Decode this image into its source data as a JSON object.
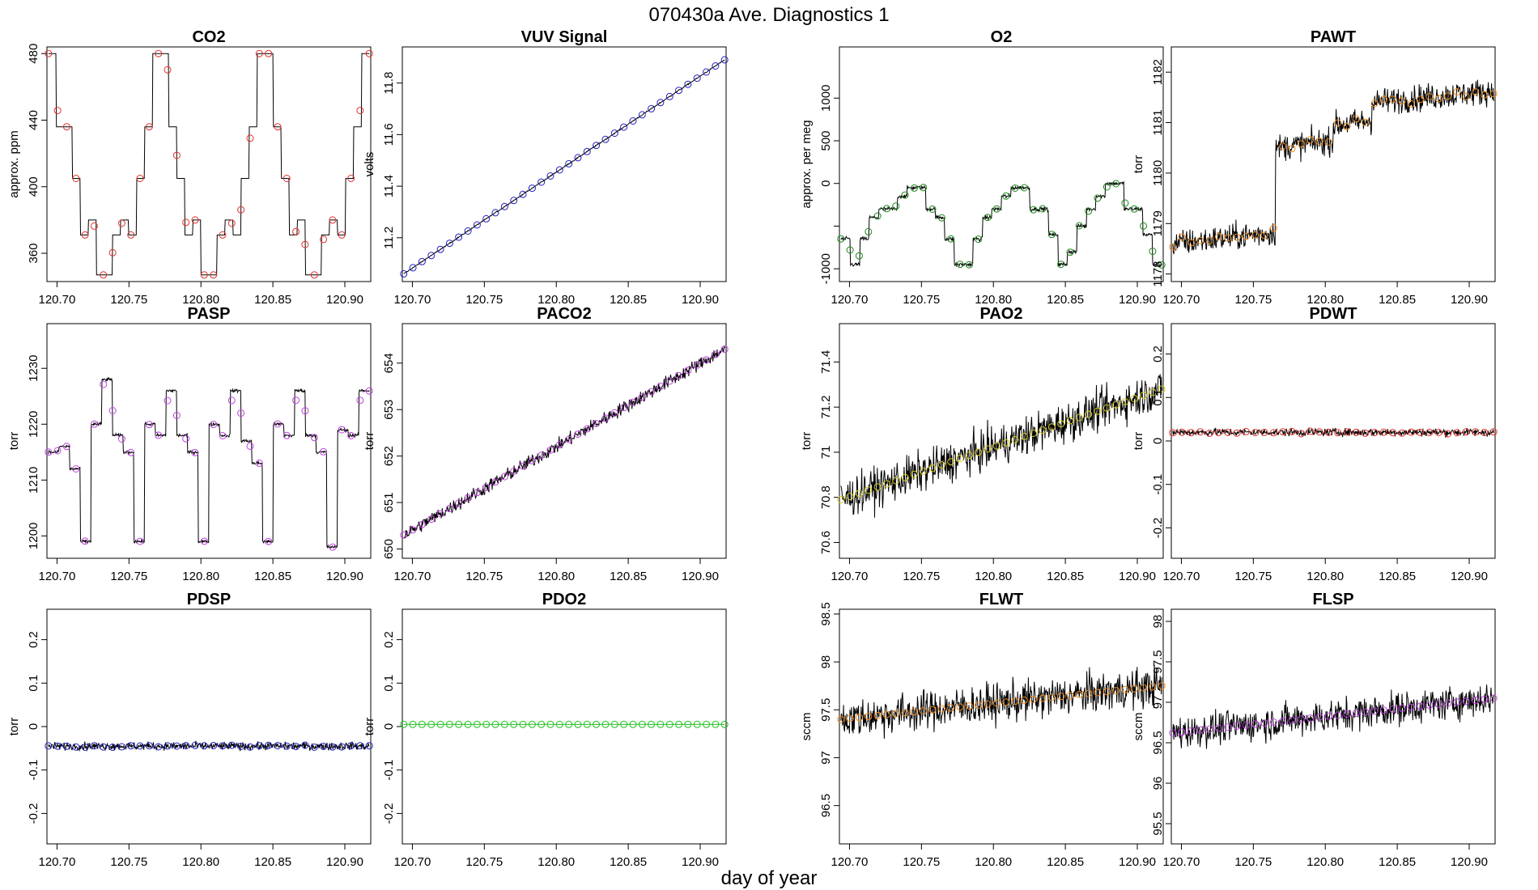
{
  "figure_title": "070430a   Ave. Diagnostics 1",
  "x_label": "day of year",
  "chart_data": [
    {
      "type": "line",
      "title": "CO2",
      "ylabel": "approx. ppm",
      "xlim": [
        120.693,
        120.918
      ],
      "ylim": [
        343,
        484
      ],
      "yticks": [
        360,
        400,
        440,
        480
      ],
      "xticks": [
        "120.70",
        "120.75",
        "120.80",
        "120.85",
        "120.90"
      ],
      "line_color": "#000000",
      "marker_color": "#e0302a",
      "pattern": "co2_steps"
    },
    {
      "type": "line",
      "title": "VUV Signal",
      "ylabel": "volts",
      "xlim": [
        120.693,
        120.918
      ],
      "ylim": [
        11.03,
        11.94
      ],
      "yticks": [
        11.2,
        11.4,
        11.6,
        11.8
      ],
      "xticks": [
        "120.70",
        "120.75",
        "120.80",
        "120.85",
        "120.90"
      ],
      "line_color": "#000000",
      "marker_color": "#2020c0",
      "start": 11.06,
      "end": 11.89
    },
    {
      "type": "line",
      "title": "O2",
      "ylabel": "approx. per meg",
      "xlim": [
        120.693,
        120.918
      ],
      "ylim": [
        -1150,
        1600
      ],
      "yticks": [
        -1000,
        -500,
        0,
        500,
        1000
      ],
      "ytick_labels": [
        "-1000",
        "",
        "0",
        "500",
        "1000"
      ],
      "xticks": [
        "120.70",
        "120.75",
        "120.80",
        "120.85",
        "120.90"
      ],
      "line_color": "#000000",
      "marker_color": "#1a8a1a",
      "pattern": "o2_steps"
    },
    {
      "type": "line",
      "title": "PAWT",
      "ylabel": "torr",
      "xlim": [
        120.693,
        120.918
      ],
      "ylim": [
        1177.85,
        1182.5
      ],
      "yticks": [
        1178,
        1179,
        1180,
        1181,
        1182
      ],
      "xticks": [
        "120.70",
        "120.75",
        "120.80",
        "120.85",
        "120.90"
      ],
      "line_color": "#000000",
      "marker_color": "#f08a1c",
      "pattern": "pawt"
    },
    {
      "type": "line",
      "title": "PASP",
      "ylabel": "torr",
      "xlim": [
        120.693,
        120.918
      ],
      "ylim": [
        1196,
        1238
      ],
      "yticks": [
        1200,
        1210,
        1220,
        1230
      ],
      "xticks": [
        "120.70",
        "120.75",
        "120.80",
        "120.85",
        "120.90"
      ],
      "line_color": "#000000",
      "marker_color": "#c040e0",
      "pattern": "pasp"
    },
    {
      "type": "line",
      "title": "PACO2",
      "ylabel": "torr",
      "xlim": [
        120.693,
        120.918
      ],
      "ylim": [
        649.8,
        654.85
      ],
      "yticks": [
        650,
        651,
        652,
        653,
        654
      ],
      "xticks": [
        "120.70",
        "120.75",
        "120.80",
        "120.85",
        "120.90"
      ],
      "line_color": "#000000",
      "marker_color": "#c040e0",
      "start": 650.3,
      "end": 654.3
    },
    {
      "type": "line",
      "title": "PAO2",
      "ylabel": "torr",
      "xlim": [
        120.693,
        120.918
      ],
      "ylim": [
        70.53,
        71.57
      ],
      "yticks": [
        70.6,
        70.8,
        71.0,
        71.2,
        71.4
      ],
      "xticks": [
        "120.70",
        "120.75",
        "120.80",
        "120.85",
        "120.90"
      ],
      "line_color": "#000000",
      "marker_color": "#d6cc1a",
      "start": 70.79,
      "end": 71.28
    },
    {
      "type": "line",
      "title": "PDWT",
      "ylabel": "torr",
      "xlim": [
        120.693,
        120.918
      ],
      "ylim": [
        -0.27,
        0.27
      ],
      "yticks": [
        -0.2,
        -0.1,
        0.0,
        0.1,
        0.2
      ],
      "xticks": [
        "120.70",
        "120.75",
        "120.80",
        "120.85",
        "120.90"
      ],
      "line_color": "#000000",
      "marker_color": "#e0302a",
      "level": 0.02
    },
    {
      "type": "line",
      "title": "PDSP",
      "ylabel": "torr",
      "xlim": [
        120.693,
        120.918
      ],
      "ylim": [
        -0.27,
        0.27
      ],
      "yticks": [
        -0.2,
        -0.1,
        0.0,
        0.1,
        0.2
      ],
      "xticks": [
        "120.70",
        "120.75",
        "120.80",
        "120.85",
        "120.90"
      ],
      "line_color": "#000000",
      "marker_color": "#2020c0",
      "level": -0.045
    },
    {
      "type": "line",
      "title": "PDO2",
      "ylabel": "torr",
      "xlim": [
        120.693,
        120.918
      ],
      "ylim": [
        -0.27,
        0.27
      ],
      "yticks": [
        -0.2,
        -0.1,
        0.0,
        0.1,
        0.2
      ],
      "xticks": [
        "120.70",
        "120.75",
        "120.80",
        "120.85",
        "120.90"
      ],
      "line_color": "#1fbf1f",
      "marker_color": "#1fbf1f",
      "level": 0.005
    },
    {
      "type": "line",
      "title": "FLWT",
      "ylabel": "sccm",
      "xlim": [
        120.693,
        120.918
      ],
      "ylim": [
        96.1,
        98.55
      ],
      "yticks": [
        96.5,
        97.0,
        97.5,
        98.0,
        98.5
      ],
      "xticks": [
        "120.70",
        "120.75",
        "120.80",
        "120.85",
        "120.90"
      ],
      "line_color": "#000000",
      "marker_color": "#f08a1c",
      "start": 97.4,
      "end": 97.75
    },
    {
      "type": "line",
      "title": "FLSP",
      "ylabel": "sccm",
      "xlim": [
        120.693,
        120.918
      ],
      "ylim": [
        95.25,
        98.15
      ],
      "yticks": [
        95.5,
        96.0,
        96.5,
        97.0,
        97.5,
        98.0
      ],
      "xticks": [
        "120.70",
        "120.75",
        "120.80",
        "120.85",
        "120.90"
      ],
      "line_color": "#000000",
      "marker_color": "#c040e0",
      "start": 96.62,
      "end": 97.05
    }
  ]
}
